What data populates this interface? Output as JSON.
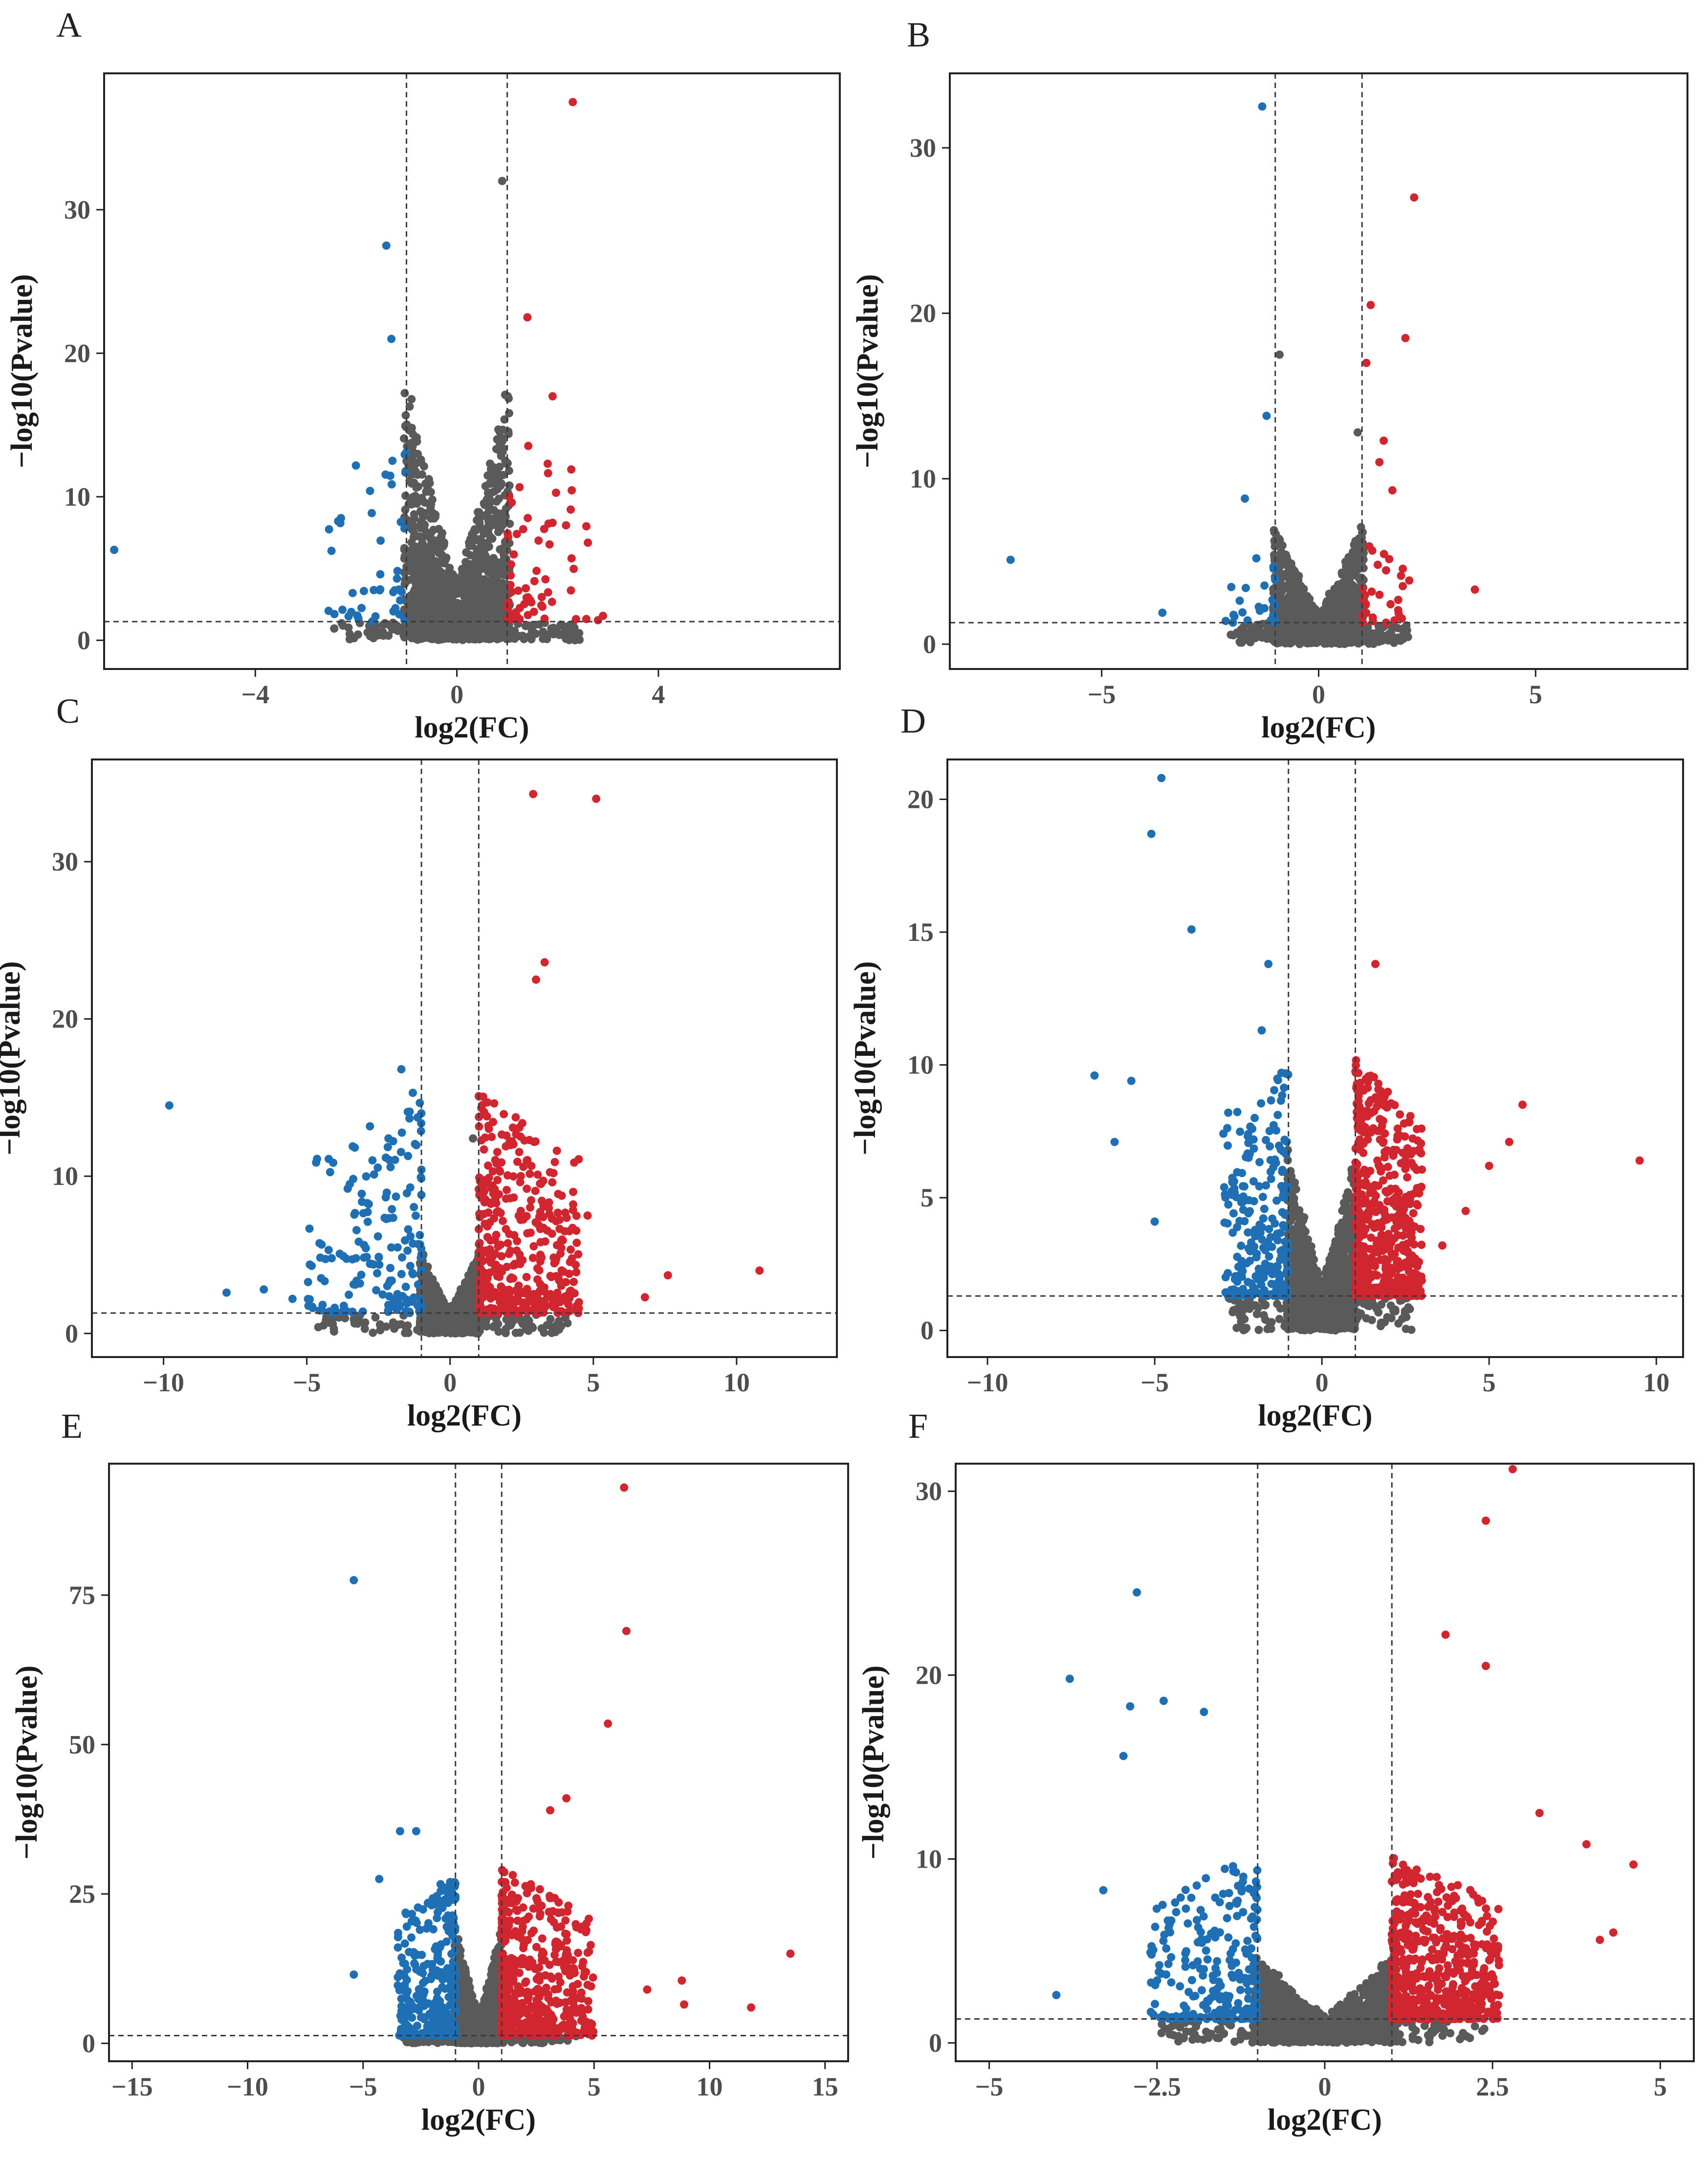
{
  "figure": {
    "colors": {
      "down": "#1f6fb4",
      "up": "#d1262f",
      "ns": "#5a5a5a",
      "frame": "#222222",
      "tick_text": "#4d4d4d"
    },
    "xlabel": "log2(FC)",
    "ylabel": "−log10(Pvalue)"
  },
  "chart_data": [
    {
      "panel": "A",
      "type": "scatter",
      "xlim": [
        -7,
        7.6
      ],
      "ylim": [
        -2,
        39.5
      ],
      "xticks": [
        -4,
        0,
        4
      ],
      "xtick_labels": [
        "−4",
        "0",
        "4"
      ],
      "yticks": [
        0,
        10,
        20,
        30
      ],
      "ytick_labels": [
        "0",
        "10",
        "20",
        "30"
      ],
      "fc_threshold": 1,
      "p_threshold": 1.3,
      "xlabel": "log2(FC)",
      "ylabel": "−log10(Pvalue)",
      "ns_spread": 1.05,
      "ns_height": 18,
      "ns_count": 1600,
      "n_up": 60,
      "n_down": 45,
      "up_range": [
        1,
        2.6
      ],
      "down_range": [
        -2.6,
        -1
      ],
      "sig_height": 14,
      "highlights": [
        {
          "x": 2.3,
          "y": 37.5,
          "group": "up"
        },
        {
          "x": -1.4,
          "y": 27.5,
          "group": "down"
        },
        {
          "x": -1.3,
          "y": 21,
          "group": "down"
        },
        {
          "x": 1.4,
          "y": 22.5,
          "group": "up"
        },
        {
          "x": 1.9,
          "y": 17,
          "group": "up"
        },
        {
          "x": 0.9,
          "y": 32,
          "group": "ns"
        },
        {
          "x": -6.8,
          "y": 6.3,
          "group": "down"
        },
        {
          "x": 2.6,
          "y": 6.8,
          "group": "up"
        },
        {
          "x": 2.9,
          "y": 1.7,
          "group": "up"
        },
        {
          "x": 2.8,
          "y": 1.4,
          "group": "up"
        },
        {
          "x": -0.9,
          "y": 16.8,
          "group": "ns"
        },
        {
          "x": 0.8,
          "y": 14,
          "group": "ns"
        }
      ]
    },
    {
      "panel": "B",
      "type": "scatter",
      "xlim": [
        -8.5,
        8.5
      ],
      "ylim": [
        -1.5,
        34.5
      ],
      "xticks": [
        -5,
        0,
        5
      ],
      "xtick_labels": [
        "−5",
        "0",
        "5"
      ],
      "yticks": [
        0,
        10,
        20,
        30
      ],
      "ytick_labels": [
        "0",
        "10",
        "20",
        "30"
      ],
      "fc_threshold": 1,
      "p_threshold": 1.3,
      "xlabel": "log2(FC)",
      "ylabel": "−log10(Pvalue)",
      "ns_spread": 1.05,
      "ns_height": 7,
      "ns_count": 1600,
      "n_up": 30,
      "n_down": 25,
      "up_range": [
        1,
        2.2
      ],
      "down_range": [
        -2.2,
        -1
      ],
      "sig_height": 5,
      "highlights": [
        {
          "x": -1.3,
          "y": 32.5,
          "group": "down"
        },
        {
          "x": 2.2,
          "y": 27,
          "group": "up"
        },
        {
          "x": 1.2,
          "y": 20.5,
          "group": "up"
        },
        {
          "x": 2.0,
          "y": 18.5,
          "group": "up"
        },
        {
          "x": -0.9,
          "y": 17.5,
          "group": "ns"
        },
        {
          "x": 1.1,
          "y": 17,
          "group": "up"
        },
        {
          "x": -1.2,
          "y": 13.8,
          "group": "down"
        },
        {
          "x": 1.5,
          "y": 12.3,
          "group": "up"
        },
        {
          "x": 1.4,
          "y": 11,
          "group": "up"
        },
        {
          "x": 0.9,
          "y": 12.8,
          "group": "ns"
        },
        {
          "x": -1.7,
          "y": 8.8,
          "group": "down"
        },
        {
          "x": -7.1,
          "y": 5.1,
          "group": "down"
        },
        {
          "x": -3.6,
          "y": 1.9,
          "group": "down"
        },
        {
          "x": 3.6,
          "y": 3.3,
          "group": "up"
        },
        {
          "x": 1.7,
          "y": 9.3,
          "group": "up"
        }
      ]
    },
    {
      "panel": "C",
      "type": "scatter",
      "xlim": [
        -12.5,
        13.5
      ],
      "ylim": [
        -1.5,
        36.5
      ],
      "xticks": [
        -10,
        -5,
        0,
        5,
        10
      ],
      "xtick_labels": [
        "−10",
        "−5",
        "0",
        "5",
        "10"
      ],
      "yticks": [
        0,
        10,
        20,
        30
      ],
      "ytick_labels": [
        "0",
        "10",
        "20",
        "30"
      ],
      "fc_threshold": 1,
      "p_threshold": 1.3,
      "xlabel": "log2(FC)",
      "ylabel": "−log10(Pvalue)",
      "ns_spread": 1.05,
      "ns_height": 5,
      "ns_count": 1400,
      "n_up": 420,
      "n_down": 170,
      "up_range": [
        1,
        4.5
      ],
      "down_range": [
        -5,
        -1
      ],
      "sig_height": 14,
      "highlights": [
        {
          "x": 2.9,
          "y": 34.3,
          "group": "up"
        },
        {
          "x": 5.1,
          "y": 34,
          "group": "up"
        },
        {
          "x": 3.3,
          "y": 23.6,
          "group": "up"
        },
        {
          "x": 3.0,
          "y": 22.5,
          "group": "up"
        },
        {
          "x": -1.7,
          "y": 16.8,
          "group": "down"
        },
        {
          "x": -1.3,
          "y": 15.3,
          "group": "down"
        },
        {
          "x": -9.8,
          "y": 14.5,
          "group": "down"
        },
        {
          "x": -7.8,
          "y": 2.6,
          "group": "down"
        },
        {
          "x": -6.5,
          "y": 2.8,
          "group": "down"
        },
        {
          "x": -5.5,
          "y": 2.2,
          "group": "down"
        },
        {
          "x": -3.5,
          "y": 9.5,
          "group": "down"
        },
        {
          "x": 10.8,
          "y": 4,
          "group": "up"
        },
        {
          "x": 7.6,
          "y": 3.7,
          "group": "up"
        },
        {
          "x": 6.8,
          "y": 2.3,
          "group": "up"
        },
        {
          "x": 4.8,
          "y": 7.5,
          "group": "up"
        },
        {
          "x": 0.8,
          "y": 12.4,
          "group": "ns"
        }
      ]
    },
    {
      "panel": "D",
      "type": "scatter",
      "xlim": [
        -11.2,
        10.8
      ],
      "ylim": [
        -1,
        21.5
      ],
      "xticks": [
        -10,
        -5,
        0,
        5,
        10
      ],
      "xtick_labels": [
        "−10",
        "−5",
        "0",
        "5",
        "10"
      ],
      "yticks": [
        0,
        5,
        10,
        15,
        20
      ],
      "ytick_labels": [
        "0",
        "5",
        "10",
        "15",
        "20"
      ],
      "fc_threshold": 1,
      "p_threshold": 1.3,
      "xlabel": "log2(FC)",
      "ylabel": "−log10(Pvalue)",
      "ns_spread": 1.05,
      "ns_height": 6.5,
      "ns_count": 1600,
      "n_up": 560,
      "n_down": 230,
      "up_range": [
        1,
        3
      ],
      "down_range": [
        -3,
        -1
      ],
      "sig_height": 9,
      "highlights": [
        {
          "x": -4.8,
          "y": 20.8,
          "group": "down"
        },
        {
          "x": -5.1,
          "y": 18.7,
          "group": "down"
        },
        {
          "x": -3.9,
          "y": 15.1,
          "group": "down"
        },
        {
          "x": -1.6,
          "y": 13.8,
          "group": "down"
        },
        {
          "x": 1.6,
          "y": 13.8,
          "group": "up"
        },
        {
          "x": -1.8,
          "y": 11.3,
          "group": "down"
        },
        {
          "x": -6.8,
          "y": 9.6,
          "group": "down"
        },
        {
          "x": -5.7,
          "y": 9.4,
          "group": "down"
        },
        {
          "x": -6.2,
          "y": 7.1,
          "group": "down"
        },
        {
          "x": -5.0,
          "y": 4.1,
          "group": "down"
        },
        {
          "x": 9.5,
          "y": 6.4,
          "group": "up"
        },
        {
          "x": 6.0,
          "y": 8.5,
          "group": "up"
        },
        {
          "x": 5.6,
          "y": 7.1,
          "group": "up"
        },
        {
          "x": 5.0,
          "y": 6.2,
          "group": "up"
        },
        {
          "x": 4.3,
          "y": 4.5,
          "group": "up"
        },
        {
          "x": 3.6,
          "y": 3.2,
          "group": "up"
        },
        {
          "x": -2.8,
          "y": 8.2,
          "group": "down"
        }
      ]
    },
    {
      "panel": "E",
      "type": "scatter",
      "xlim": [
        -16,
        16
      ],
      "ylim": [
        -3,
        97
      ],
      "xticks": [
        -15,
        -10,
        -5,
        0,
        5,
        10,
        15
      ],
      "xtick_labels": [
        "−15",
        "−10",
        "−5",
        "0",
        "5",
        "10",
        "15"
      ],
      "yticks": [
        0,
        25,
        50,
        75
      ],
      "ytick_labels": [
        "0",
        "25",
        "50",
        "75"
      ],
      "fc_threshold": 1,
      "p_threshold": 1.3,
      "xlabel": "log2(FC)",
      "ylabel": "−log10(Pvalue)",
      "ns_spread": 1.05,
      "ns_height": 20,
      "ns_count": 1400,
      "n_up": 460,
      "n_down": 300,
      "up_range": [
        1,
        5
      ],
      "down_range": [
        -3.5,
        -1
      ],
      "sig_height": 28,
      "highlights": [
        {
          "x": 6.3,
          "y": 93,
          "group": "up"
        },
        {
          "x": -5.4,
          "y": 77.5,
          "group": "down"
        },
        {
          "x": 6.4,
          "y": 69,
          "group": "up"
        },
        {
          "x": 5.6,
          "y": 53.5,
          "group": "up"
        },
        {
          "x": 3.8,
          "y": 41,
          "group": "up"
        },
        {
          "x": 3.1,
          "y": 39,
          "group": "up"
        },
        {
          "x": -3.4,
          "y": 35.5,
          "group": "down"
        },
        {
          "x": -2.7,
          "y": 35.5,
          "group": "down"
        },
        {
          "x": -4.3,
          "y": 27.5,
          "group": "down"
        },
        {
          "x": -5.4,
          "y": 11.5,
          "group": "down"
        },
        {
          "x": 13.5,
          "y": 15,
          "group": "up"
        },
        {
          "x": 11.8,
          "y": 6,
          "group": "up"
        },
        {
          "x": 8.8,
          "y": 10.5,
          "group": "up"
        },
        {
          "x": 8.9,
          "y": 6.5,
          "group": "up"
        },
        {
          "x": 7.3,
          "y": 9,
          "group": "up"
        }
      ]
    },
    {
      "panel": "F",
      "type": "scatter",
      "xlim": [
        -5.5,
        5.5
      ],
      "ylim": [
        -1,
        31.5
      ],
      "xticks": [
        -5,
        -2.5,
        0,
        2.5,
        5
      ],
      "xtick_labels": [
        "−5",
        "−2.5",
        "0",
        "2.5",
        "5"
      ],
      "yticks": [
        0,
        10,
        20,
        30
      ],
      "ytick_labels": [
        "0",
        "10",
        "20",
        "30"
      ],
      "fc_threshold": 1,
      "p_threshold": 1.3,
      "xlabel": "log2(FC)",
      "ylabel": "−log10(Pvalue)",
      "ns_spread": 1.05,
      "ns_height": 4.5,
      "ns_count": 1700,
      "n_up": 640,
      "n_down": 240,
      "up_range": [
        1,
        2.6
      ],
      "down_range": [
        -2.6,
        -1
      ],
      "sig_height": 9,
      "highlights": [
        {
          "x": 2.8,
          "y": 31.2,
          "group": "up"
        },
        {
          "x": 2.4,
          "y": 28.4,
          "group": "up"
        },
        {
          "x": -2.8,
          "y": 24.5,
          "group": "down"
        },
        {
          "x": 1.8,
          "y": 22.2,
          "group": "up"
        },
        {
          "x": 2.4,
          "y": 20.5,
          "group": "up"
        },
        {
          "x": -3.8,
          "y": 19.8,
          "group": "down"
        },
        {
          "x": -2.9,
          "y": 18.3,
          "group": "down"
        },
        {
          "x": -2.4,
          "y": 18.6,
          "group": "down"
        },
        {
          "x": -1.8,
          "y": 18,
          "group": "down"
        },
        {
          "x": -3.0,
          "y": 15.6,
          "group": "down"
        },
        {
          "x": -4.0,
          "y": 2.6,
          "group": "down"
        },
        {
          "x": 4.6,
          "y": 9.7,
          "group": "up"
        },
        {
          "x": 4.3,
          "y": 6.0,
          "group": "up"
        },
        {
          "x": 3.9,
          "y": 10.8,
          "group": "up"
        },
        {
          "x": 4.1,
          "y": 5.6,
          "group": "up"
        },
        {
          "x": 3.2,
          "y": 12.5,
          "group": "up"
        },
        {
          "x": -3.3,
          "y": 8.3,
          "group": "down"
        }
      ]
    }
  ]
}
